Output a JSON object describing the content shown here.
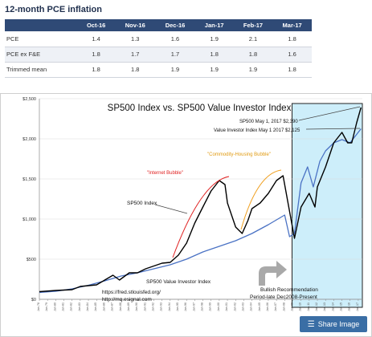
{
  "table": {
    "title": "12-month PCE inflation",
    "columns": [
      "",
      "Oct-16",
      "Nov-16",
      "Dec-16",
      "Jan-17",
      "Feb-17",
      "Mar-17"
    ],
    "rows": [
      {
        "label": "PCE",
        "values": [
          "1.4",
          "1.3",
          "1.6",
          "1.9",
          "2.1",
          "1.8"
        ]
      },
      {
        "label": "PCE ex F&E",
        "values": [
          "1.8",
          "1.7",
          "1.7",
          "1.8",
          "1.8",
          "1.6"
        ]
      },
      {
        "label": "Trimmed mean",
        "values": [
          "1.8",
          "1.8",
          "1.9",
          "1.9",
          "1.9",
          "1.8"
        ]
      }
    ]
  },
  "chart_data": {
    "type": "line",
    "title": "SP500 Index vs. SP500 Value Investor Index",
    "ylim": [
      0,
      2500
    ],
    "yticks": [
      "$0",
      "$500",
      "$1,000",
      "$1,500",
      "$2,000",
      "$2,500"
    ],
    "xlim": [
      1978,
      2017.5
    ],
    "grid": true,
    "series": [
      {
        "name": "SP500 Index",
        "color": "#000000",
        "points": [
          [
            1978,
            95
          ],
          [
            1980,
            110
          ],
          [
            1982,
            120
          ],
          [
            1983,
            160
          ],
          [
            1985,
            180
          ],
          [
            1986,
            240
          ],
          [
            1987,
            300
          ],
          [
            1987.8,
            240
          ],
          [
            1989,
            330
          ],
          [
            1990,
            330
          ],
          [
            1991,
            380
          ],
          [
            1993,
            450
          ],
          [
            1994,
            460
          ],
          [
            1995,
            550
          ],
          [
            1996,
            700
          ],
          [
            1997,
            950
          ],
          [
            1998,
            1150
          ],
          [
            1999,
            1350
          ],
          [
            2000,
            1480
          ],
          [
            2000.7,
            1430
          ],
          [
            2001,
            1200
          ],
          [
            2002,
            900
          ],
          [
            2002.8,
            820
          ],
          [
            2003.5,
            980
          ],
          [
            2004,
            1130
          ],
          [
            2005,
            1200
          ],
          [
            2006,
            1320
          ],
          [
            2007,
            1480
          ],
          [
            2007.8,
            1540
          ],
          [
            2008.5,
            1150
          ],
          [
            2009.2,
            760
          ],
          [
            2010,
            1150
          ],
          [
            2011,
            1320
          ],
          [
            2011.7,
            1150
          ],
          [
            2012,
            1400
          ],
          [
            2013,
            1650
          ],
          [
            2014,
            1950
          ],
          [
            2015,
            2080
          ],
          [
            2015.7,
            1950
          ],
          [
            2016.2,
            1950
          ],
          [
            2016.8,
            2200
          ],
          [
            2017.33,
            2390
          ]
        ]
      },
      {
        "name": "SP500 Value Investor Index",
        "color": "#4a72c4",
        "points": [
          [
            1978,
            85
          ],
          [
            1980,
            100
          ],
          [
            1982,
            130
          ],
          [
            1984,
            175
          ],
          [
            1986,
            230
          ],
          [
            1988,
            290
          ],
          [
            1990,
            330
          ],
          [
            1992,
            380
          ],
          [
            1994,
            430
          ],
          [
            1996,
            500
          ],
          [
            1998,
            590
          ],
          [
            2000,
            660
          ],
          [
            2002,
            730
          ],
          [
            2004,
            820
          ],
          [
            2006,
            930
          ],
          [
            2008,
            1050
          ],
          [
            2008.6,
            780
          ],
          [
            2009.2,
            820
          ],
          [
            2010,
            1450
          ],
          [
            2010.8,
            1650
          ],
          [
            2011.5,
            1400
          ],
          [
            2012.3,
            1720
          ],
          [
            2013,
            1850
          ],
          [
            2014,
            1950
          ],
          [
            2015,
            1990
          ],
          [
            2016,
            1950
          ],
          [
            2017.33,
            2125
          ]
        ]
      }
    ],
    "annotations": [
      {
        "text": "SP500 May 1, 2017 $2,390"
      },
      {
        "text": "Value Investor Index May 1 2017 $2,125"
      },
      {
        "text": "\"Internet Bubble\"",
        "color": "#e02020"
      },
      {
        "text": "\"Commodity-Housing Bubble\"",
        "color": "#e09a10"
      },
      {
        "text": "SP500 Index"
      },
      {
        "text": "SP500 Value Investor Index"
      },
      {
        "text": "Bullish Recommendation"
      },
      {
        "text": "Period-late Dec2008-Present"
      },
      {
        "text": "https://fred.stlouisfed.org/"
      },
      {
        "text": "http://mq.esignal.com"
      }
    ],
    "highlight_region": {
      "x_start": 2008.9,
      "x_end": 2017.5,
      "color": "#cdeefa"
    }
  },
  "share_button": {
    "label": "Share Image",
    "icon": "layers-icon"
  }
}
